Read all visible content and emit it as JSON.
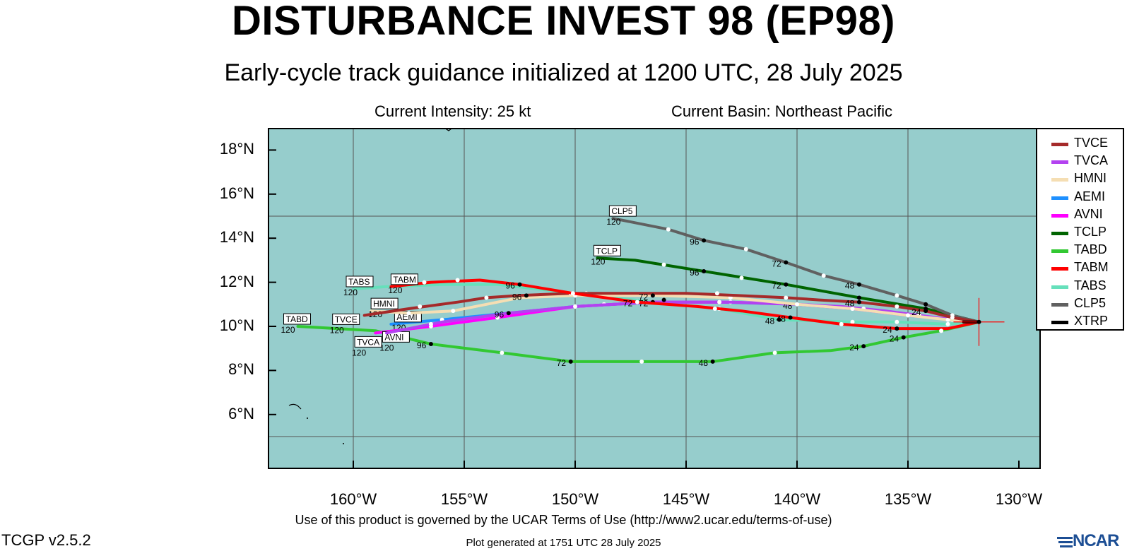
{
  "header": {
    "title": "DISTURBANCE INVEST 98 (EP98)",
    "subtitle": "Early-cycle track guidance initialized at 1200 UTC, 28 July 2025",
    "current_intensity": "Current Intensity: 25 kt",
    "current_basin": "Current Basin: Northeast Pacific"
  },
  "axes": {
    "lat_labels": [
      "18°N",
      "16°N",
      "14°N",
      "12°N",
      "10°N",
      "8°N",
      "6°N"
    ],
    "lat_values": [
      18,
      16,
      14,
      12,
      10,
      8,
      6
    ],
    "lon_labels": [
      "160°W",
      "155°W",
      "150°W",
      "145°W",
      "140°W",
      "135°W",
      "130°W"
    ],
    "lon_values": [
      -160,
      -155,
      -150,
      -145,
      -140,
      -135,
      -130
    ],
    "lon_range": [
      -164,
      -130
    ],
    "lat_range": [
      4,
      19
    ],
    "gridlines_lon": [
      -160,
      -155,
      -150,
      -145,
      -140,
      -135
    ],
    "gridlines_lat": [
      15,
      5
    ]
  },
  "colors": {
    "ocean": "#96cdcc",
    "grid": "#555555",
    "frame": "#000000"
  },
  "current_position": {
    "lon": -131.8,
    "lat": 10.2
  },
  "models": [
    {
      "name": "TVCE",
      "color": "#a52a2a",
      "label_hour": "120",
      "track": [
        [
          -131.8,
          10.2
        ],
        [
          -133,
          10.4
        ],
        [
          -134.2,
          10.7
        ],
        [
          -135.5,
          10.9
        ],
        [
          -137.2,
          11.1
        ],
        [
          -139,
          11.2
        ],
        [
          -140.5,
          11.3
        ],
        [
          -142.7,
          11.4
        ],
        [
          -145,
          11.5
        ],
        [
          -147.5,
          11.5
        ],
        [
          -150.2,
          11.5
        ],
        [
          -152.5,
          11.4
        ],
        [
          -154,
          11.3
        ],
        [
          -155.3,
          11.1
        ],
        [
          -157.5,
          10.8
        ],
        [
          -159.5,
          10.5
        ]
      ],
      "markers": [
        [
          -133,
          10.4,
          "",
          0
        ],
        [
          -134.2,
          10.7,
          "24",
          1
        ],
        [
          -135.5,
          10.9,
          "",
          0
        ],
        [
          -137.2,
          11.1,
          "48",
          1
        ],
        [
          -140.5,
          11.3,
          "",
          0
        ],
        [
          -143.6,
          11.5,
          "",
          0
        ],
        [
          -146.5,
          11.4,
          "72",
          1
        ],
        [
          -150.2,
          11.5,
          "",
          0
        ],
        [
          -152.2,
          11.4,
          "96",
          1
        ],
        [
          -154,
          11.3,
          "",
          0
        ],
        [
          -157,
          10.9,
          "",
          0
        ]
      ],
      "tag": [
        -159.5,
        10.5,
        "TVCE",
        -45,
        -2
      ]
    },
    {
      "name": "TVCA",
      "color": "#b342f0",
      "label_hour": "120",
      "track": [
        [
          -131.8,
          10.2
        ],
        [
          -133,
          10.3
        ],
        [
          -134.5,
          10.5
        ],
        [
          -136,
          10.7
        ],
        [
          -138,
          10.9
        ],
        [
          -140,
          11.0
        ],
        [
          -143,
          11.1
        ],
        [
          -146.5,
          11.1
        ],
        [
          -150,
          10.9
        ],
        [
          -153,
          10.6
        ],
        [
          -156,
          10.2
        ],
        [
          -158.5,
          9.7
        ]
      ],
      "markers": [
        [
          -134.5,
          10.5,
          "",
          0
        ],
        [
          -137,
          10.8,
          "",
          0
        ],
        [
          -140,
          11.0,
          "48",
          1
        ],
        [
          -143.5,
          11.1,
          "",
          0
        ],
        [
          -146.5,
          11.1,
          "72",
          1
        ],
        [
          -150,
          10.9,
          "",
          0
        ],
        [
          -153,
          10.6,
          "96",
          1
        ],
        [
          -156.5,
          10.1,
          "",
          0
        ]
      ],
      "tag": [
        -158.5,
        9.7,
        "TVCA",
        -45,
        5
      ]
    },
    {
      "name": "HMNI",
      "color": "#f5deb3",
      "label_hour": "120",
      "track": [
        [
          -131.8,
          10.2
        ],
        [
          -133.2,
          10.3
        ],
        [
          -135,
          10.5
        ],
        [
          -137.5,
          10.8
        ],
        [
          -140,
          11.0
        ],
        [
          -143,
          11.3
        ],
        [
          -146.5,
          11.4
        ],
        [
          -150,
          11.4
        ],
        [
          -152.5,
          11.3
        ],
        [
          -154,
          11.0
        ],
        [
          -155.5,
          10.7
        ],
        [
          -157.5,
          10.6
        ],
        [
          -159.2,
          10.7
        ]
      ],
      "markers": [
        [
          -133.2,
          10.3,
          "",
          0
        ],
        [
          -135,
          10.5,
          "",
          0
        ],
        [
          -137.5,
          10.8,
          "",
          0
        ],
        [
          -140,
          11.0,
          "",
          0
        ],
        [
          -143,
          11.3,
          "",
          0
        ],
        [
          -146.5,
          11.4,
          "",
          0
        ],
        [
          -150,
          11.4,
          "",
          0
        ],
        [
          -155.5,
          10.7,
          "",
          0
        ],
        [
          -157.5,
          10.6,
          "",
          0
        ]
      ],
      "tag": [
        -159.2,
        10.7,
        "HMNI",
        0,
        -18
      ]
    },
    {
      "name": "AEMI",
      "color": "#1e90ff",
      "label_hour": "120",
      "track": [
        [
          -131.8,
          10.2
        ],
        [
          -133,
          10.3
        ],
        [
          -135.5,
          10.6
        ],
        [
          -137.5,
          10.8
        ],
        [
          -140,
          11.0
        ],
        [
          -143.5,
          11.1
        ],
        [
          -146.5,
          11.1
        ],
        [
          -150,
          10.9
        ],
        [
          -153,
          10.6
        ],
        [
          -156,
          10.3
        ],
        [
          -158.3,
          10.1
        ]
      ],
      "markers": [
        [
          -133,
          10.3,
          "",
          0
        ],
        [
          -135.5,
          10.6,
          "",
          0
        ],
        [
          -137.5,
          10.8,
          "",
          0
        ],
        [
          -140,
          11.0,
          "",
          0
        ],
        [
          -143.5,
          11.1,
          "",
          0
        ],
        [
          -148.7,
          11.0,
          "",
          0
        ],
        [
          -150,
          10.9,
          "",
          0
        ],
        [
          -153,
          10.6,
          "",
          0
        ],
        [
          -156,
          10.3,
          "",
          0
        ]
      ],
      "tag": [
        -158.3,
        10.1,
        "AEMI",
        5,
        -18
      ]
    },
    {
      "name": "AVNI",
      "color": "#ff00ff",
      "label_hour": "120",
      "track": [
        [
          -131.8,
          10.2
        ],
        [
          -133,
          10.3
        ],
        [
          -135,
          10.5
        ],
        [
          -137.5,
          10.8
        ],
        [
          -140,
          11.0
        ],
        [
          -143,
          11.1
        ],
        [
          -146.5,
          11.1
        ],
        [
          -150,
          10.9
        ],
        [
          -153.5,
          10.4
        ],
        [
          -156.5,
          10.0
        ],
        [
          -159,
          9.7
        ]
      ],
      "markers": [
        [
          -133,
          10.3,
          "",
          0
        ],
        [
          -135,
          10.5,
          "",
          0
        ],
        [
          -137.5,
          10.8,
          "",
          0
        ],
        [
          -140,
          11.0,
          "",
          0
        ],
        [
          -143,
          11.1,
          "",
          0
        ],
        [
          -150,
          10.9,
          "",
          0
        ],
        [
          -153.5,
          10.4,
          "",
          0
        ],
        [
          -156.5,
          10.0,
          "",
          0
        ]
      ],
      "tag": [
        -159,
        9.7,
        "AVNI",
        10,
        -2
      ]
    },
    {
      "name": "TCLP",
      "color": "#006400",
      "label_hour": "120",
      "track": [
        [
          -131.8,
          10.2
        ],
        [
          -133,
          10.5
        ],
        [
          -134.2,
          10.8
        ],
        [
          -137.2,
          11.3
        ],
        [
          -140.5,
          11.9
        ],
        [
          -144.2,
          12.5
        ],
        [
          -147.3,
          13.0
        ],
        [
          -149,
          13.1
        ]
      ],
      "markers": [
        [
          -134.2,
          10.8,
          "",
          1
        ],
        [
          -137.2,
          11.3,
          "",
          1
        ],
        [
          -140.5,
          11.9,
          "72",
          1
        ],
        [
          -142.5,
          12.2,
          "",
          0
        ],
        [
          -144.2,
          12.5,
          "96",
          1
        ],
        [
          -146,
          12.8,
          "",
          0
        ]
      ],
      "tag": [
        -149,
        13.1,
        "TCLP",
        -5,
        -18
      ]
    },
    {
      "name": "TABD",
      "color": "#32c832",
      "label_hour": "120",
      "track": [
        [
          -131.8,
          10.2
        ],
        [
          -133.5,
          9.8
        ],
        [
          -135.2,
          9.5
        ],
        [
          -137,
          9.1
        ],
        [
          -138.5,
          8.9
        ],
        [
          -141,
          8.8
        ],
        [
          -143.8,
          8.4
        ],
        [
          -147,
          8.4
        ],
        [
          -150.2,
          8.4
        ],
        [
          -153.3,
          8.8
        ],
        [
          -156.5,
          9.2
        ],
        [
          -159,
          9.8
        ],
        [
          -162.5,
          10.0
        ]
      ],
      "markers": [
        [
          -133.5,
          9.8,
          "",
          0
        ],
        [
          -135.2,
          9.5,
          "24",
          1
        ],
        [
          -137,
          9.1,
          "24",
          1
        ],
        [
          -141,
          8.8,
          "",
          0
        ],
        [
          -143.8,
          8.4,
          "48",
          1
        ],
        [
          -147,
          8.4,
          "",
          0
        ],
        [
          -150.2,
          8.4,
          "72",
          1
        ],
        [
          -153.3,
          8.8,
          "",
          0
        ],
        [
          -156.5,
          9.2,
          "96",
          1
        ]
      ],
      "tag": [
        -162.5,
        10.0,
        "TABD",
        -20,
        -18
      ]
    },
    {
      "name": "TABM",
      "color": "#ff0000",
      "label_hour": "120",
      "track": [
        [
          -131.8,
          10.2
        ],
        [
          -133.2,
          9.9
        ],
        [
          -135.5,
          9.9
        ],
        [
          -138,
          10.1
        ],
        [
          -140.3,
          10.4
        ],
        [
          -142.5,
          10.7
        ],
        [
          -144.5,
          10.9
        ],
        [
          -147.2,
          11.1
        ],
        [
          -150.1,
          11.5
        ],
        [
          -152.5,
          11.9
        ],
        [
          -154.3,
          12.1
        ],
        [
          -156.5,
          12.0
        ],
        [
          -158.3,
          11.8
        ]
      ],
      "markers": [
        [
          -133.5,
          9.8,
          "",
          0
        ],
        [
          -135.5,
          9.9,
          "24",
          1
        ],
        [
          -138,
          10.1,
          "",
          0
        ],
        [
          -140.3,
          10.4,
          "48",
          1
        ],
        [
          -143.7,
          10.8,
          "",
          0
        ],
        [
          -146,
          11.2,
          "",
          1
        ],
        [
          -147.2,
          11.1,
          "72",
          0
        ],
        [
          -150.1,
          11.5,
          "",
          0
        ],
        [
          -152.5,
          11.9,
          "96",
          1
        ],
        [
          -155.3,
          12.1,
          "",
          0
        ],
        [
          -156.8,
          12.0,
          "",
          0
        ]
      ],
      "tag": [
        -158.3,
        11.8,
        "TABM",
        0,
        -18
      ]
    },
    {
      "name": "TABS",
      "color": "#66e0bb",
      "label_hour": "120",
      "track": [
        [
          -131.8,
          10.2
        ],
        [
          -133.2,
          10.1
        ],
        [
          -135.5,
          10.2
        ],
        [
          -137.5,
          10.2
        ],
        [
          -140.8,
          10.3
        ],
        [
          -143.5,
          10.8
        ],
        [
          -146.5,
          11.1
        ],
        [
          -150,
          11.5
        ],
        [
          -153.5,
          11.9
        ],
        [
          -156,
          11.9
        ],
        [
          -158.5,
          11.8
        ],
        [
          -160,
          11.7
        ]
      ],
      "markers": [
        [
          -133.2,
          10.1,
          "",
          0
        ],
        [
          -135.5,
          10.2,
          "",
          0
        ],
        [
          -137.5,
          10.2,
          "",
          0
        ],
        [
          -140.8,
          10.3,
          "48",
          1
        ],
        [
          -143.5,
          10.8,
          "",
          0
        ],
        [
          -146.5,
          11.1,
          "",
          0
        ],
        [
          -149.5,
          11.5,
          "",
          0
        ]
      ],
      "tag": [
        -160,
        11.7,
        "TABS",
        -10,
        -18
      ]
    },
    {
      "name": "CLP5",
      "color": "#606060",
      "label_hour": "120",
      "track": [
        [
          -131.8,
          10.2
        ],
        [
          -133,
          10.5
        ],
        [
          -134.2,
          11.0
        ],
        [
          -135.5,
          11.4
        ],
        [
          -137.2,
          11.9
        ],
        [
          -138.8,
          12.3
        ],
        [
          -140.5,
          12.9
        ],
        [
          -142.3,
          13.5
        ],
        [
          -144.2,
          13.9
        ],
        [
          -145.8,
          14.4
        ],
        [
          -148.3,
          14.9
        ]
      ],
      "markers": [
        [
          -133,
          10.5,
          "",
          0
        ],
        [
          -134.2,
          11.0,
          "",
          1
        ],
        [
          -135.5,
          11.4,
          "",
          0
        ],
        [
          -137.2,
          11.9,
          "48",
          1
        ],
        [
          -138.8,
          12.3,
          "",
          0
        ],
        [
          -140.5,
          12.9,
          "72",
          1
        ],
        [
          -142.3,
          13.5,
          "",
          0
        ],
        [
          -144.2,
          13.9,
          "96",
          1
        ],
        [
          -145.8,
          14.4,
          "",
          0
        ]
      ],
      "tag": [
        -148.3,
        14.9,
        "CLP5",
        -5,
        -18
      ]
    },
    {
      "name": "XTRP",
      "color": "#000000",
      "label_hour": "",
      "track": [
        [
          -131.8,
          10.2
        ],
        [
          -132.5,
          10.2
        ]
      ],
      "markers": [],
      "tag": null
    }
  ],
  "legend_items": [
    "TVCE",
    "TVCA",
    "HMNI",
    "AEMI",
    "AVNI",
    "TCLP",
    "TABD",
    "TABM",
    "TABS",
    "CLP5",
    "XTRP"
  ],
  "footer": {
    "terms": "Use of this product is governed by the UCAR Terms of Use (http://www2.ucar.edu/terms-of-use)",
    "version": "TCGP v2.5.2",
    "generated": "Plot generated at 1751 UTC   28 July 2025",
    "logo": "NCAR"
  }
}
